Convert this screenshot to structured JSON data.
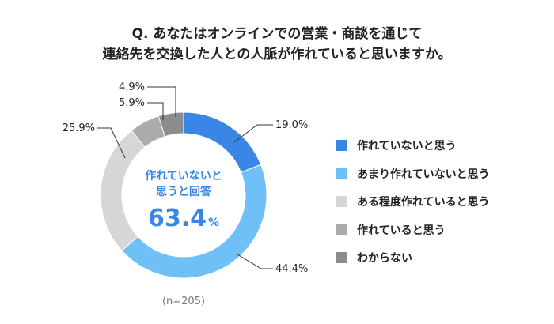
{
  "title_lines": [
    "Q. あなたはオンラインでの営業・商談を通じて",
    "連絡先を交換した人との人脈が作れていると思いますか。"
  ],
  "center": {
    "label_lines": [
      "作れていないと",
      "思うと回答"
    ],
    "value": "63.4",
    "unit": "%"
  },
  "note": "(n=205)",
  "chart_data": {
    "type": "pie",
    "style": "donut",
    "start": "top",
    "direction": "clockwise",
    "slices": [
      {
        "name": "作れていないと思う",
        "value": 19.0,
        "label": "19.0%",
        "color": "#3a86e6"
      },
      {
        "name": "あまり作れていないと思う",
        "value": 44.4,
        "label": "44.4%",
        "color": "#6fc0f7"
      },
      {
        "name": "ある程度作れていると思う",
        "value": 25.9,
        "label": "25.9%",
        "color": "#d6d6d6"
      },
      {
        "name": "作れていると思う",
        "value": 5.9,
        "label": "5.9%",
        "color": "#ababab"
      },
      {
        "name": "わからない",
        "value": 4.9,
        "label": "4.9%",
        "color": "#8c8c8c"
      }
    ],
    "legend_position": "right"
  }
}
